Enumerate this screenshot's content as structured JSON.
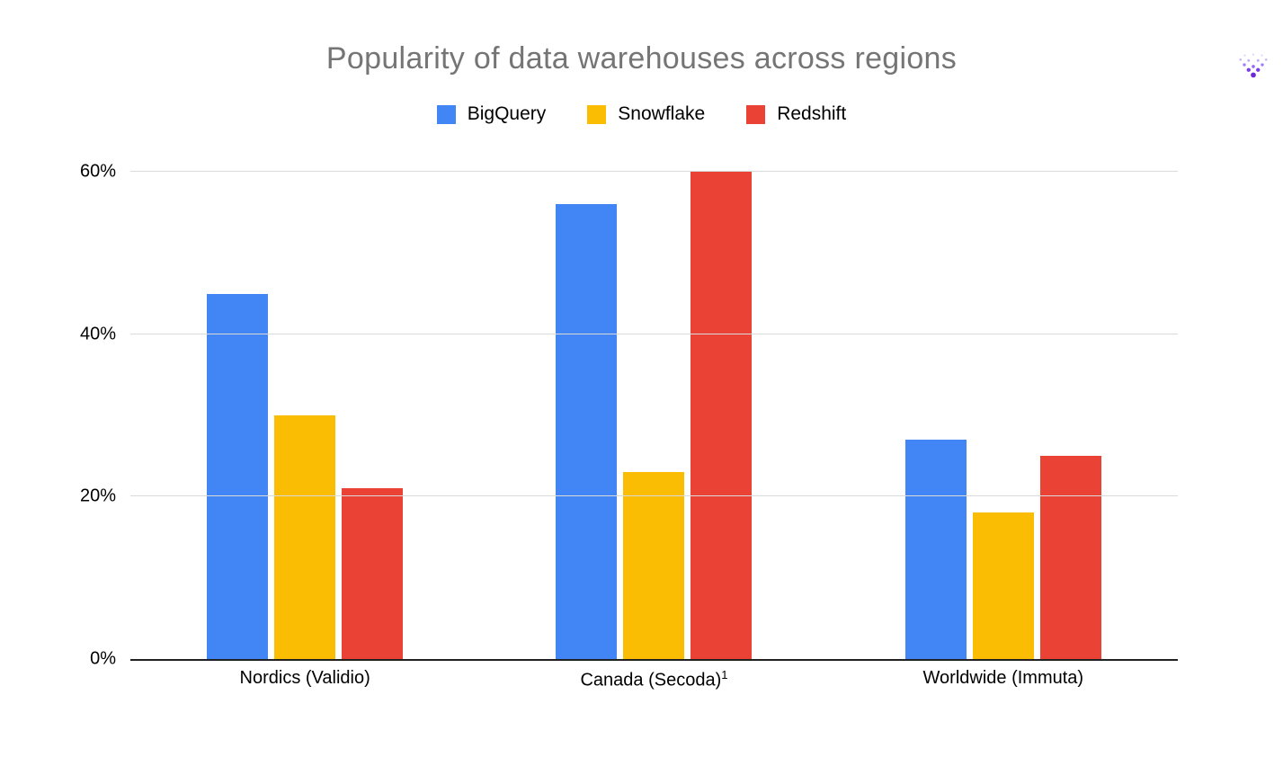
{
  "page": {
    "title": "Popularity of data warehouses across regions"
  },
  "logo": {
    "icon": "dots-logo",
    "color": "#7C3AED"
  },
  "chart_data": {
    "type": "bar",
    "title": "Popularity of data warehouses across regions",
    "categories": [
      "Nordics (Validio)",
      "Canada (Secoda)",
      "Worldwide (Immuta)"
    ],
    "category_superscripts": [
      "",
      "1",
      ""
    ],
    "series": [
      {
        "name": "BigQuery",
        "color": "#4285F4",
        "values": [
          45,
          56,
          27
        ]
      },
      {
        "name": "Snowflake",
        "color": "#FBBC04",
        "values": [
          30,
          23,
          18
        ]
      },
      {
        "name": "Redshift",
        "color": "#EA4335",
        "values": [
          21,
          60,
          25
        ]
      }
    ],
    "xlabel": "",
    "ylabel": "",
    "ylim": [
      0,
      60
    ],
    "yticks": [
      0,
      20,
      40,
      60
    ],
    "ytick_labels": [
      "0%",
      "20%",
      "40%",
      "60%"
    ],
    "grid": true,
    "legend_position": "top",
    "colors": {
      "title_text": "#757575",
      "axis_text": "#000000",
      "gridline": "#dadada",
      "baseline": "#212121"
    }
  }
}
